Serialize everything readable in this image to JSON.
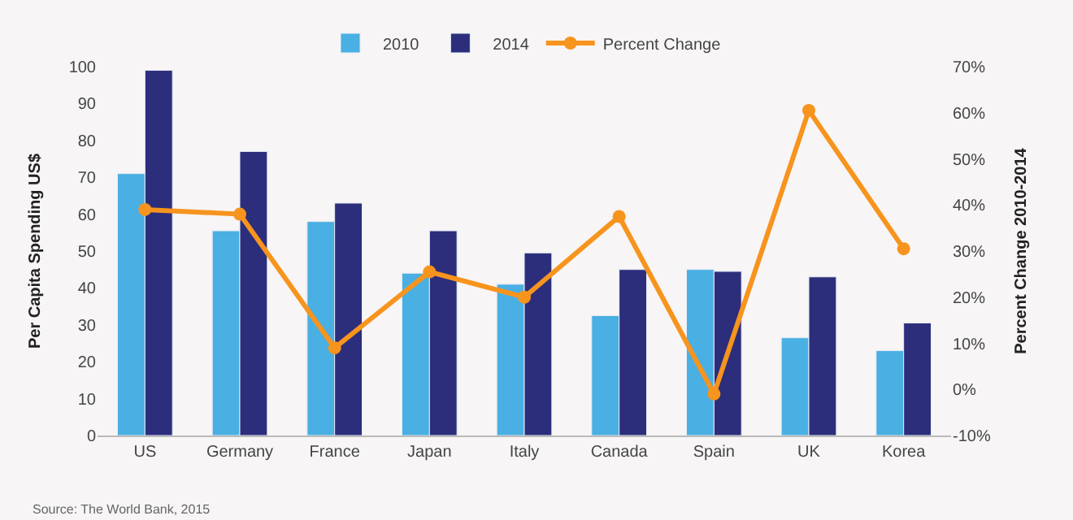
{
  "chart_data": {
    "type": "bar",
    "categories": [
      "US",
      "Germany",
      "France",
      "Japan",
      "Italy",
      "Canada",
      "Spain",
      "UK",
      "Korea"
    ],
    "series": [
      {
        "name": "2010",
        "color": "#4aafe2",
        "values": [
          71,
          55.5,
          58,
          44,
          41,
          32.5,
          45,
          26.5,
          23
        ]
      },
      {
        "name": "2014",
        "color": "#2c2e7b",
        "values": [
          99,
          77,
          63,
          55.5,
          49.5,
          45,
          44.5,
          43,
          30.5
        ]
      },
      {
        "name": "Percent Change",
        "type": "line",
        "axis": "y2",
        "color": "#f7941d",
        "values": [
          39,
          38,
          9,
          25.5,
          20,
          37.5,
          -1,
          60.5,
          30.5
        ]
      }
    ],
    "ylabel": "Per Capita Spending US$",
    "y2label": "Percent Change 2010-2014",
    "ylim": [
      0,
      100
    ],
    "yticks": [
      0,
      10,
      20,
      30,
      40,
      50,
      60,
      70,
      80,
      90,
      100
    ],
    "y2lim": [
      -10,
      70
    ],
    "y2ticks": [
      {
        "value": -10,
        "label": "-10%"
      },
      {
        "value": 0,
        "label": "0%"
      },
      {
        "value": 10,
        "label": "10%"
      },
      {
        "value": 20,
        "label": "20%"
      },
      {
        "value": 30,
        "label": "30%"
      },
      {
        "value": 40,
        "label": "40%"
      },
      {
        "value": 50,
        "label": "50%"
      },
      {
        "value": 60,
        "label": "60%"
      },
      {
        "value": 70,
        "label": "70%"
      }
    ],
    "marker": "circle",
    "legend": "top",
    "grid": false,
    "annotations": [
      "Source: The World Bank, 2015"
    ]
  }
}
